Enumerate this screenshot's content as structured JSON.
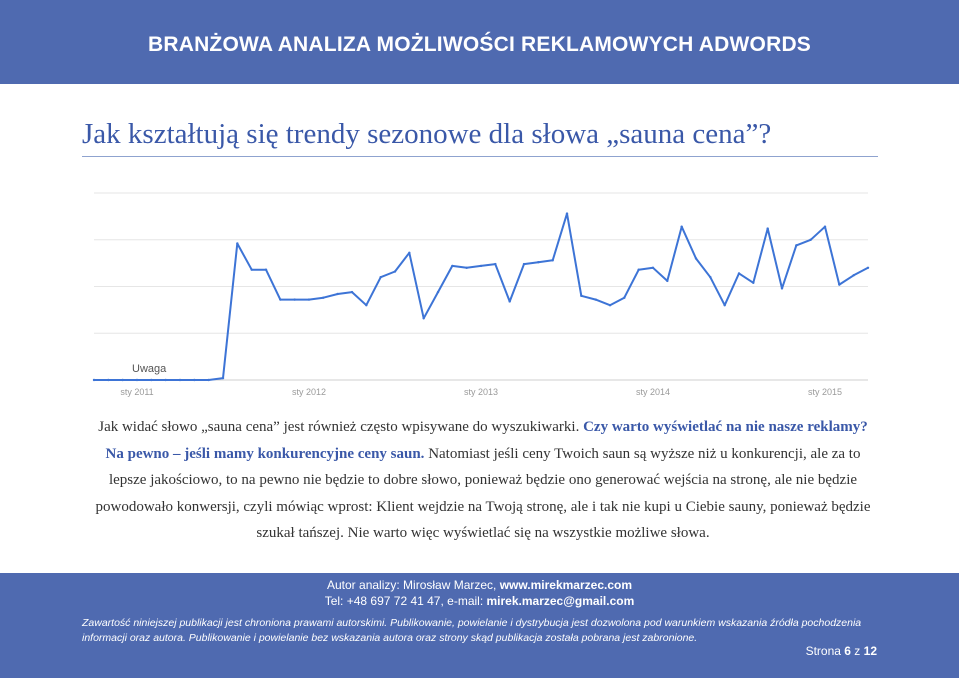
{
  "header": {
    "title": "BRANŻOWA ANALIZA MOŻLIWOŚCI REKLAMOWYCH ADWORDS"
  },
  "heading": "Jak kształtują się trendy sezonowe dla słowa „sauna cena”?",
  "chart_data": {
    "type": "line",
    "title": "",
    "annotation": "Uwaga",
    "x_ticks": [
      "sty 2011",
      "sty 2012",
      "sty 2013",
      "sty 2014",
      "sty 2015"
    ],
    "x": [
      "2010-10",
      "2010-11",
      "2010-12",
      "2011-01",
      "2011-02",
      "2011-03",
      "2011-04",
      "2011-05",
      "2011-06",
      "2011-07",
      "2011-08",
      "2011-09",
      "2011-10",
      "2011-11",
      "2011-12",
      "2012-01",
      "2012-02",
      "2012-03",
      "2012-04",
      "2012-05",
      "2012-06",
      "2012-07",
      "2012-08",
      "2012-09",
      "2012-10",
      "2012-11",
      "2012-12",
      "2013-01",
      "2013-02",
      "2013-03",
      "2013-04",
      "2013-05",
      "2013-06",
      "2013-07",
      "2013-08",
      "2013-09",
      "2013-10",
      "2013-11",
      "2013-12",
      "2014-01",
      "2014-02",
      "2014-03",
      "2014-04",
      "2014-05",
      "2014-06",
      "2014-07",
      "2014-08",
      "2014-09",
      "2014-10",
      "2014-11",
      "2014-12",
      "2015-01",
      "2015-02",
      "2015-03",
      "2015-04"
    ],
    "values": [
      0,
      0,
      0,
      0,
      0,
      0,
      0,
      0,
      0,
      1,
      73,
      59,
      59,
      43,
      43,
      43,
      44,
      46,
      47,
      40,
      55,
      58,
      68,
      33,
      47,
      61,
      60,
      61,
      62,
      42,
      62,
      63,
      64,
      89,
      45,
      43,
      40,
      44,
      59,
      60,
      53,
      82,
      65,
      55,
      40,
      57,
      52,
      81,
      49,
      72,
      75,
      82,
      51,
      56,
      60
    ],
    "ylim": [
      0,
      100
    ],
    "grid": true,
    "line_color": "#3d74d6"
  },
  "body": {
    "line1_plain": "Jak widać słowo „sauna cena” jest również często wpisywane do wyszukiwarki. ",
    "line1_bold": "Czy warto wyświetlać na nie nasze reklamy? Na pewno – jeśli mamy konkurencyjne ceny saun.",
    "rest": " Natomiast jeśli ceny Twoich saun są wyższe niż u konkurencji, ale za to lepsze jakościowo, to na pewno nie będzie to dobre słowo, ponieważ będzie ono generować wejścia na stronę, ale nie będzie powodowało konwersji, czyli mówiąc wprost: Klient wejdzie na Twoją stronę, ale i tak nie kupi u Ciebie sauny, ponieważ będzie szukał tańszej. Nie warto więc wyświetlać się na wszystkie możliwe słowa."
  },
  "footer": {
    "author_label": "Autor analizy: Mirosław Marzec, ",
    "author_site": "www.mirekmarzec.com",
    "contact_label": "Tel: +48 697 72 41 47, e-mail: ",
    "contact_email": "mirek.marzec@gmail.com",
    "copyright": "Zawartość niniejszej publikacji jest chroniona prawami autorskimi. Publikowanie, powielanie i dystrybucja jest dozwolona pod warunkiem wskazania źródła pochodzenia informacji oraz autora. Publikowanie i powielanie bez wskazania autora oraz strony skąd publikacja została pobrana jest zabronione.",
    "page_prefix": "Strona ",
    "page_current": "6",
    "page_sep": " z ",
    "page_total": "12"
  }
}
